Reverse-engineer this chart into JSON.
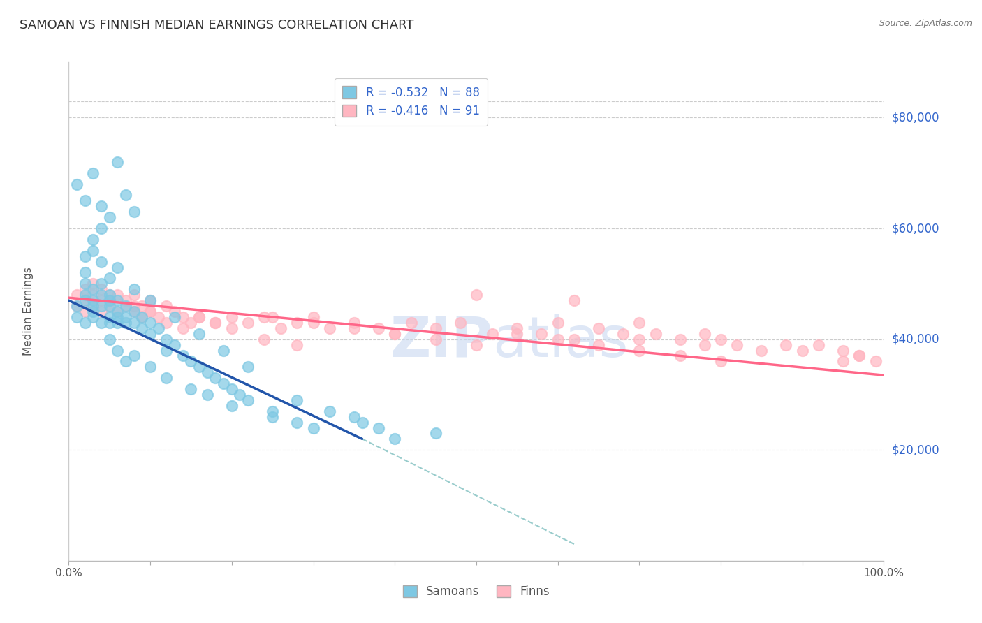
{
  "title": "SAMOAN VS FINNISH MEDIAN EARNINGS CORRELATION CHART",
  "source": "Source: ZipAtlas.com",
  "ylabel": "Median Earnings",
  "xlim": [
    0,
    1.0
  ],
  "ylim": [
    0,
    90000
  ],
  "ytick_values": [
    20000,
    40000,
    60000,
    80000
  ],
  "ytick_labels": [
    "$20,000",
    "$40,000",
    "$60,000",
    "$80,000"
  ],
  "samoans_color": "#7EC8E3",
  "finns_color": "#FFB6C1",
  "samoans_line_color": "#2255AA",
  "finns_line_color": "#FF6688",
  "dashed_line_color": "#99CCCC",
  "legend_text_color": "#3366CC",
  "watermark_color": "#DDEEFF",
  "R_samoans": -0.532,
  "N_samoans": 88,
  "R_finns": -0.416,
  "N_finns": 91,
  "samoans_line": {
    "x0": 0.0,
    "y0": 47000,
    "x1": 0.36,
    "y1": 22000
  },
  "finns_line": {
    "x0": 0.0,
    "y0": 47500,
    "x1": 1.0,
    "y1": 33500
  },
  "dash_line": {
    "x0": 0.36,
    "y0": 22000,
    "x1": 0.62,
    "y1": 3000
  },
  "samoans_scatter": {
    "x": [
      0.01,
      0.01,
      0.02,
      0.02,
      0.02,
      0.02,
      0.03,
      0.03,
      0.03,
      0.03,
      0.03,
      0.04,
      0.04,
      0.04,
      0.04,
      0.05,
      0.05,
      0.05,
      0.05,
      0.05,
      0.06,
      0.06,
      0.06,
      0.06,
      0.07,
      0.07,
      0.07,
      0.08,
      0.08,
      0.09,
      0.09,
      0.1,
      0.1,
      0.11,
      0.12,
      0.12,
      0.13,
      0.14,
      0.15,
      0.16,
      0.17,
      0.18,
      0.19,
      0.2,
      0.21,
      0.22,
      0.02,
      0.03,
      0.04,
      0.05,
      0.01,
      0.02,
      0.03,
      0.04,
      0.06,
      0.07,
      0.08,
      0.05,
      0.06,
      0.07,
      0.08,
      0.1,
      0.12,
      0.15,
      0.17,
      0.2,
      0.25,
      0.3,
      0.25,
      0.28,
      0.02,
      0.03,
      0.04,
      0.05,
      0.06,
      0.08,
      0.1,
      0.13,
      0.16,
      0.19,
      0.22,
      0.35,
      0.38,
      0.4,
      0.28,
      0.32,
      0.36,
      0.45
    ],
    "y": [
      46000,
      44000,
      48000,
      50000,
      43000,
      47000,
      46000,
      45000,
      49000,
      44000,
      47000,
      46000,
      50000,
      43000,
      48000,
      44000,
      47000,
      46000,
      48000,
      43000,
      44000,
      47000,
      45000,
      43000,
      44000,
      46000,
      43000,
      45000,
      43000,
      44000,
      42000,
      43000,
      41000,
      42000,
      40000,
      38000,
      39000,
      37000,
      36000,
      35000,
      34000,
      33000,
      32000,
      31000,
      30000,
      29000,
      55000,
      58000,
      60000,
      62000,
      68000,
      65000,
      70000,
      64000,
      72000,
      66000,
      63000,
      40000,
      38000,
      36000,
      37000,
      35000,
      33000,
      31000,
      30000,
      28000,
      26000,
      24000,
      27000,
      25000,
      52000,
      56000,
      54000,
      51000,
      53000,
      49000,
      47000,
      44000,
      41000,
      38000,
      35000,
      26000,
      24000,
      22000,
      29000,
      27000,
      25000,
      23000
    ]
  },
  "finns_scatter": {
    "x": [
      0.01,
      0.01,
      0.02,
      0.02,
      0.02,
      0.03,
      0.03,
      0.03,
      0.04,
      0.04,
      0.04,
      0.05,
      0.05,
      0.05,
      0.06,
      0.06,
      0.07,
      0.07,
      0.08,
      0.08,
      0.09,
      0.1,
      0.1,
      0.11,
      0.12,
      0.13,
      0.14,
      0.15,
      0.16,
      0.18,
      0.2,
      0.22,
      0.24,
      0.26,
      0.28,
      0.3,
      0.32,
      0.35,
      0.38,
      0.4,
      0.42,
      0.45,
      0.48,
      0.5,
      0.52,
      0.55,
      0.58,
      0.6,
      0.62,
      0.65,
      0.68,
      0.7,
      0.72,
      0.75,
      0.78,
      0.8,
      0.82,
      0.85,
      0.88,
      0.9,
      0.92,
      0.95,
      0.97,
      0.99,
      0.25,
      0.3,
      0.35,
      0.4,
      0.45,
      0.5,
      0.08,
      0.09,
      0.1,
      0.12,
      0.14,
      0.16,
      0.18,
      0.2,
      0.24,
      0.28,
      0.55,
      0.6,
      0.65,
      0.7,
      0.75,
      0.8,
      0.62,
      0.7,
      0.78,
      0.95,
      0.97
    ],
    "y": [
      48000,
      46000,
      47000,
      45000,
      49000,
      48000,
      46000,
      50000,
      47000,
      45000,
      49000,
      48000,
      46000,
      47000,
      45000,
      48000,
      46000,
      47000,
      45000,
      48000,
      46000,
      45000,
      47000,
      44000,
      46000,
      45000,
      44000,
      43000,
      44000,
      43000,
      44000,
      43000,
      44000,
      42000,
      43000,
      44000,
      42000,
      43000,
      42000,
      41000,
      43000,
      42000,
      43000,
      48000,
      41000,
      42000,
      41000,
      43000,
      40000,
      42000,
      41000,
      40000,
      41000,
      40000,
      39000,
      40000,
      39000,
      38000,
      39000,
      38000,
      39000,
      38000,
      37000,
      36000,
      44000,
      43000,
      42000,
      41000,
      40000,
      39000,
      46000,
      44000,
      45000,
      43000,
      42000,
      44000,
      43000,
      42000,
      40000,
      39000,
      41000,
      40000,
      39000,
      38000,
      37000,
      36000,
      47000,
      43000,
      41000,
      36000,
      37000
    ]
  }
}
